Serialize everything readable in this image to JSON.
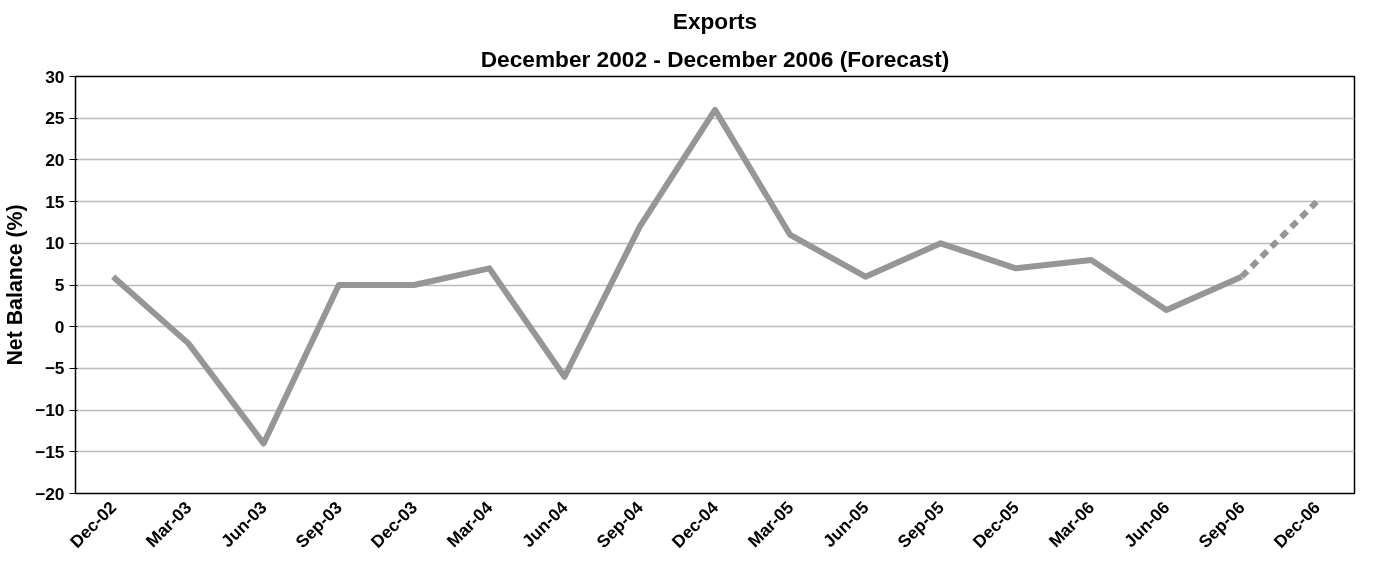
{
  "chart_data": {
    "type": "line",
    "title": "Exports",
    "subtitle": "December 2002 - December 2006 (Forecast)",
    "ylabel": "Net Balance (%)",
    "categories": [
      "Dec-02",
      "Mar-03",
      "Jun-03",
      "Sep-03",
      "Dec-03",
      "Mar-04",
      "Jun-04",
      "Sep-04",
      "Dec-04",
      "Mar-05",
      "Jun-05",
      "Sep-05",
      "Dec-05",
      "Mar-06",
      "Jun-06",
      "Sep-06",
      "Dec-06"
    ],
    "series": [
      {
        "color": "#969696",
        "line_style": "solid",
        "values": [
          6,
          -2,
          -14,
          5,
          5,
          7,
          -6,
          12,
          26,
          11,
          6,
          10,
          7,
          8,
          2,
          6,
          null
        ]
      },
      {
        "color": "#969696",
        "line_style": "dashed",
        "values": [
          null,
          null,
          null,
          null,
          null,
          null,
          null,
          null,
          null,
          null,
          null,
          null,
          null,
          null,
          null,
          6,
          15
        ]
      }
    ],
    "ylim": [
      -20,
      30
    ],
    "yticks": [
      -20,
      -15,
      -10,
      -5,
      0,
      5,
      10,
      15,
      20,
      25,
      30
    ],
    "grid": "y",
    "marker": "none"
  }
}
